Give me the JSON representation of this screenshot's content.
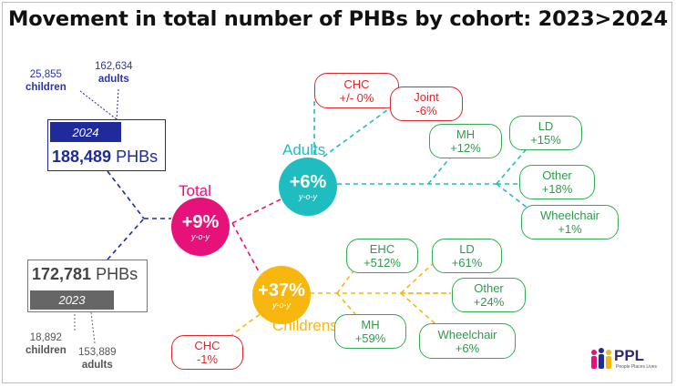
{
  "title": "Movement in total number of PHBs by cohort: 2023>2024",
  "colors": {
    "navy": "#1f2b9b",
    "grey": "#666666",
    "total": "#e6127a",
    "adults": "#1fbdc0",
    "childrens": "#f7b70e",
    "red": "#e0262b",
    "green": "#2fae55"
  },
  "y2024": {
    "children_value": "25,855",
    "children_label": "children",
    "adults_value": "162,634",
    "adults_label": "adults",
    "year": "2024",
    "total": "188,489",
    "unit": " PHBs"
  },
  "y2023": {
    "total": "172,781",
    "unit": " PHBs",
    "year": "2023",
    "children_value": "18,892",
    "children_label": "children",
    "adults_value": "153,889",
    "adults_label": "adults"
  },
  "total": {
    "label": "Total",
    "pct": "+9%",
    "yoy": "y-o-y"
  },
  "adults": {
    "label": "Adults",
    "pct": "+6%",
    "yoy": "y-o-y",
    "chc": {
      "name": "CHC",
      "value": "+/- 0%"
    },
    "joint": {
      "name": "Joint",
      "value": "-6%"
    },
    "mh": {
      "name": "MH",
      "value": "+12%"
    },
    "ld": {
      "name": "LD",
      "value": "+15%"
    },
    "other": {
      "name": "Other",
      "value": "+18%"
    },
    "wheelchair": {
      "name": "Wheelchair",
      "value": "+1%"
    }
  },
  "childrens": {
    "label": "Childrens",
    "pct": "+37%",
    "yoy": "y-o-y",
    "ehc": {
      "name": "EHC",
      "value": "+512%"
    },
    "ld": {
      "name": "LD",
      "value": "+61%"
    },
    "other": {
      "name": "Other",
      "value": "+24%"
    },
    "mh": {
      "name": "MH",
      "value": "+59%"
    },
    "wheelchair": {
      "name": "Wheelchair",
      "value": "+6%"
    },
    "chc": {
      "name": "CHC",
      "value": "-1%"
    }
  },
  "logo": {
    "name": "PPL",
    "tagline": "People Places Lives",
    "icon": "people-figures-icon"
  }
}
